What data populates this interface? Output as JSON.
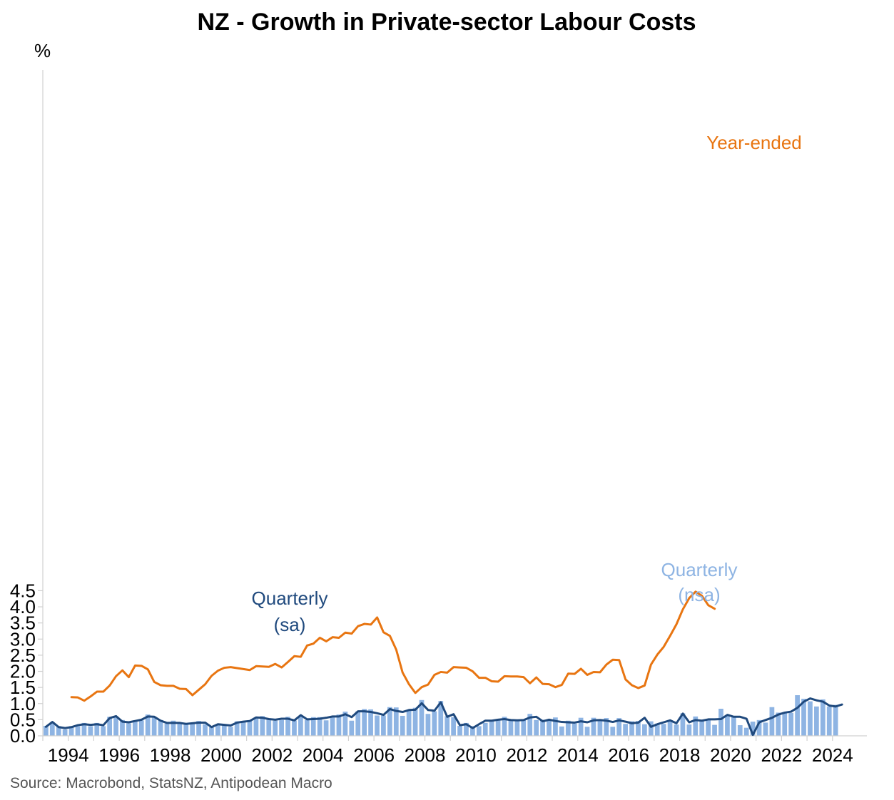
{
  "chart_data": {
    "type": "bar+line",
    "title": "NZ - Growth in Private-sector Labour Costs",
    "ylabel": "%",
    "ylim": [
      0,
      4.5
    ],
    "yticks": [
      "0.0",
      "0.5",
      "1.0",
      "1.5",
      "2.0",
      "2.5",
      "3.0",
      "3.5",
      "4.0",
      "4.5"
    ],
    "xlim": [
      1993.0,
      2024.65
    ],
    "xticks": [
      "1994",
      "1996",
      "1998",
      "2000",
      "2002",
      "2004",
      "2006",
      "2008",
      "2010",
      "2012",
      "2014",
      "2016",
      "2018",
      "2020",
      "2022",
      "2024"
    ],
    "grid": false,
    "annotations": {
      "year_ended": "Year-ended",
      "quarterly_sa": [
        "Quarterly",
        "(sa)"
      ],
      "quarterly_nsa": [
        "Quarterly",
        "(nsa)"
      ]
    },
    "source": "Source: Macrobond, StatsNZ, Antipodean Macro",
    "colors": {
      "year_ended": "#E87511",
      "quarterly_sa": "#1F497D",
      "quarterly_nsa": "#8EB4E3",
      "axis": "#d0d0d0"
    },
    "start_quarter": "1993 Q1",
    "series": [
      {
        "name": "Quarterly (nsa)",
        "type": "bar",
        "values": [
          0.31,
          0.42,
          0.3,
          0.2,
          0.3,
          0.3,
          0.4,
          0.3,
          0.4,
          0.3,
          0.59,
          0.6,
          0.49,
          0.39,
          0.48,
          0.48,
          0.66,
          0.56,
          0.49,
          0.38,
          0.47,
          0.37,
          0.38,
          0.37,
          0.46,
          0.36,
          0.27,
          0.36,
          0.34,
          0.28,
          0.45,
          0.45,
          0.46,
          0.53,
          0.61,
          0.54,
          0.47,
          0.49,
          0.59,
          0.48,
          0.61,
          0.49,
          0.58,
          0.58,
          0.48,
          0.58,
          0.66,
          0.75,
          0.47,
          0.76,
          0.83,
          0.82,
          0.63,
          0.63,
          0.89,
          0.88,
          0.62,
          0.79,
          0.87,
          1.11,
          0.68,
          0.76,
          1.08,
          0.61,
          0.58,
          0.31,
          0.4,
          0.3,
          0.3,
          0.4,
          0.49,
          0.49,
          0.59,
          0.5,
          0.49,
          0.5,
          0.68,
          0.49,
          0.5,
          0.47,
          0.57,
          0.29,
          0.47,
          0.38,
          0.56,
          0.28,
          0.56,
          0.47,
          0.55,
          0.28,
          0.55,
          0.37,
          0.45,
          0.46,
          0.36,
          0.45,
          0.38,
          0.37,
          0.47,
          0.35,
          0.7,
          0.35,
          0.6,
          0.5,
          0.5,
          0.34,
          0.84,
          0.62,
          0.61,
          0.33,
          0.25,
          0.44,
          0.49,
          0.41,
          0.89,
          0.72,
          0.71,
          0.71,
          1.26,
          1.15,
          1.07,
          0.91,
          1.13,
          0.91,
          0.96
        ]
      },
      {
        "name": "Quarterly (sa)",
        "type": "line",
        "values": [
          0.28,
          0.43,
          0.27,
          0.24,
          0.27,
          0.33,
          0.36,
          0.34,
          0.36,
          0.33,
          0.55,
          0.61,
          0.44,
          0.42,
          0.46,
          0.5,
          0.6,
          0.59,
          0.47,
          0.4,
          0.4,
          0.4,
          0.37,
          0.39,
          0.41,
          0.41,
          0.27,
          0.36,
          0.34,
          0.32,
          0.41,
          0.44,
          0.46,
          0.57,
          0.56,
          0.52,
          0.5,
          0.53,
          0.53,
          0.48,
          0.64,
          0.51,
          0.52,
          0.53,
          0.56,
          0.6,
          0.6,
          0.67,
          0.58,
          0.76,
          0.76,
          0.74,
          0.7,
          0.65,
          0.83,
          0.77,
          0.74,
          0.8,
          0.81,
          1.01,
          0.8,
          0.78,
          1.04,
          0.59,
          0.67,
          0.33,
          0.36,
          0.24,
          0.36,
          0.47,
          0.47,
          0.5,
          0.52,
          0.49,
          0.48,
          0.49,
          0.57,
          0.59,
          0.45,
          0.5,
          0.46,
          0.43,
          0.42,
          0.41,
          0.45,
          0.42,
          0.48,
          0.49,
          0.47,
          0.43,
          0.48,
          0.44,
          0.39,
          0.41,
          0.56,
          0.28,
          0.36,
          0.42,
          0.48,
          0.39,
          0.69,
          0.42,
          0.49,
          0.47,
          0.51,
          0.51,
          0.52,
          0.65,
          0.59,
          0.59,
          0.53,
          0.03,
          0.42,
          0.49,
          0.56,
          0.66,
          0.72,
          0.75,
          0.87,
          1.06,
          1.16,
          1.1,
          1.06,
          0.94,
          0.91,
          0.97
        ]
      },
      {
        "name": "Year-ended",
        "type": "line",
        "start_quarter": "1994 Q1",
        "values": [
          1.2,
          1.19,
          1.09,
          1.22,
          1.37,
          1.37,
          1.56,
          1.85,
          2.03,
          1.82,
          2.18,
          2.17,
          2.06,
          1.67,
          1.57,
          1.55,
          1.55,
          1.46,
          1.45,
          1.26,
          1.43,
          1.6,
          1.86,
          2.02,
          2.11,
          2.13,
          2.1,
          2.07,
          2.04,
          2.16,
          2.15,
          2.14,
          2.23,
          2.12,
          2.29,
          2.47,
          2.45,
          2.8,
          2.86,
          3.04,
          2.93,
          3.06,
          3.04,
          3.2,
          3.17,
          3.4,
          3.47,
          3.45,
          3.67,
          3.21,
          3.1,
          2.67,
          1.96,
          1.6,
          1.33,
          1.51,
          1.59,
          1.89,
          1.98,
          1.96,
          2.13,
          2.12,
          2.11,
          2.0,
          1.8,
          1.8,
          1.69,
          1.68,
          1.85,
          1.84,
          1.84,
          1.82,
          1.63,
          1.81,
          1.61,
          1.6,
          1.51,
          1.58,
          1.93,
          1.92,
          2.08,
          1.89,
          1.98,
          1.97,
          2.21,
          2.36,
          2.35,
          1.75,
          1.57,
          1.48,
          1.56,
          2.21,
          2.52,
          2.76,
          3.1,
          3.46,
          3.92,
          4.27,
          4.47,
          4.34,
          4.05,
          3.94
        ]
      }
    ]
  }
}
